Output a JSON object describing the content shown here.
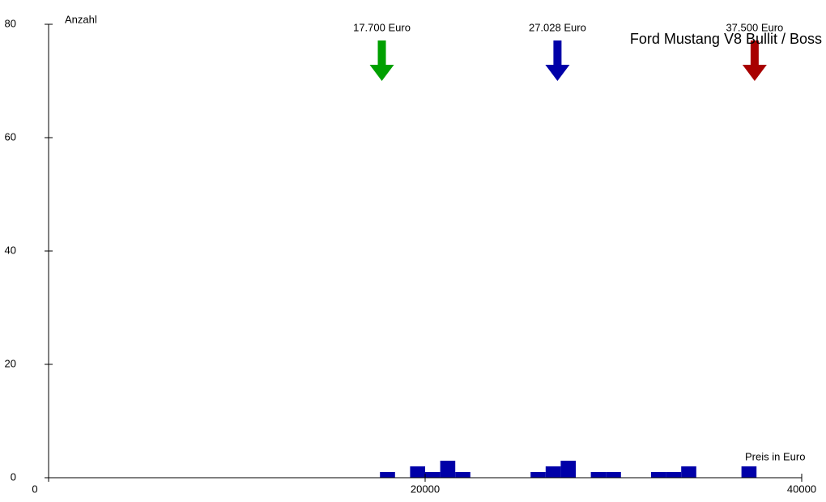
{
  "chart_data": {
    "type": "histogram",
    "title": "Ford Mustang V8 Bullit / Boss",
    "y_label": "Anzahl",
    "x_label": "Preis in Euro",
    "bins": [
      17600,
      18400,
      19200,
      20000,
      20800,
      21600,
      22400,
      23200,
      24000,
      24800,
      25600,
      26400,
      27200,
      28000,
      28800,
      29600,
      30400,
      31200,
      32000,
      32800,
      33600,
      34400,
      35200,
      36000,
      36800,
      37600
    ],
    "counts": [
      1,
      0,
      2,
      1,
      3,
      1,
      0,
      0,
      0,
      0,
      1,
      2,
      3,
      0,
      1,
      1,
      0,
      0,
      1,
      1,
      2,
      0,
      0,
      0,
      2
    ],
    "color": "#0000a8",
    "xlim": [
      0,
      40000
    ],
    "xticks": [
      0,
      20000,
      40000
    ],
    "ylim": [
      0,
      80
    ],
    "yticks": [
      0,
      20,
      40,
      60,
      80
    ],
    "markers": [
      {
        "value": 17700,
        "label": "17.700 Euro",
        "color": "#00a000"
      },
      {
        "value": 27028,
        "label": "27.028 Euro",
        "color": "#0000a8"
      },
      {
        "value": 37500,
        "label": "37.500 Euro",
        "color": "#a80000"
      }
    ]
  }
}
